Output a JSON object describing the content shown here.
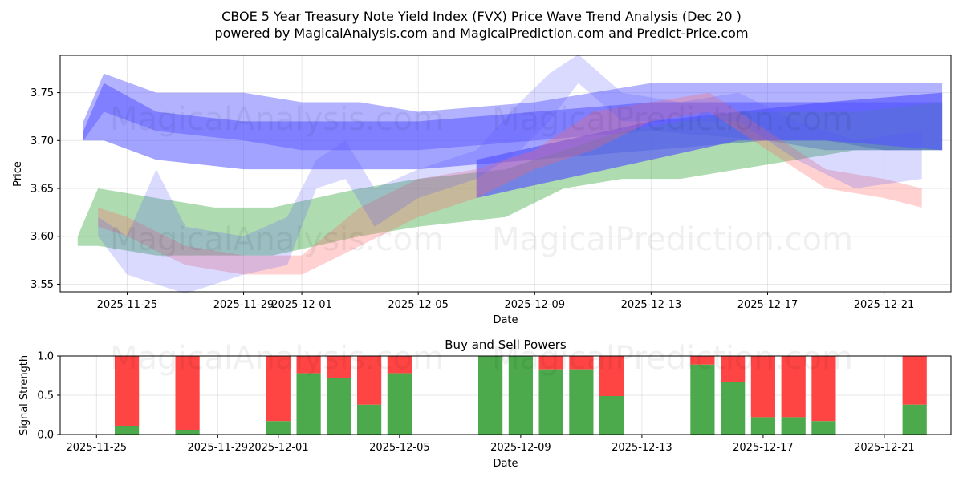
{
  "title_line1": "CBOE 5 Year Treasury Note Yield Index (FVX) Price Wave Trend Analysis (Dec 20 )",
  "title_line2": "powered by MagicalAnalysis.com and MagicalPrediction.com and Predict-Price.com",
  "watermarks": {
    "top_left": "MagicalAnalysis.com",
    "top_right": "MagicalPrediction.com",
    "mid_left": "MagicalAnalysis.com",
    "mid_right": "MagicalPrediction.com",
    "bottom_left": "MagicalAnalysis.com",
    "bottom_right": "MagicalPrediction.com"
  },
  "colors": {
    "blue": "#5555ff",
    "red": "#ff6666",
    "green": "#4caf50",
    "buy": "#4caa4c",
    "sell": "#ff4444"
  },
  "chart_data": [
    {
      "type": "area",
      "title": "",
      "xlabel": "Date",
      "ylabel": "Price",
      "x_ticks": [
        "2025-11-25",
        "2025-11-29",
        "2025-12-01",
        "2025-12-05",
        "2025-12-09",
        "2025-12-13",
        "2025-12-17",
        "2025-12-21"
      ],
      "x_tick_days": [
        2,
        6,
        8,
        12,
        16,
        20,
        24,
        28
      ],
      "xlim_days": [
        -0.3,
        30.3
      ],
      "y_ticks": [
        "3.55",
        "3.60",
        "3.65",
        "3.70",
        "3.75"
      ],
      "y_tick_values": [
        3.55,
        3.6,
        3.65,
        3.7,
        3.75
      ],
      "ylim": [
        3.542,
        3.789
      ],
      "grid": true,
      "bands": [
        {
          "color": "blue",
          "opacity": 0.45,
          "x": [
            0.5,
            1.2,
            3.0,
            6.0,
            8.0,
            10.0,
            12.0,
            16.0,
            20.0,
            24.0,
            26.0,
            28.0,
            30.0
          ],
          "lower": [
            3.7,
            3.73,
            3.71,
            3.7,
            3.69,
            3.69,
            3.69,
            3.7,
            3.71,
            3.7,
            3.69,
            3.69,
            3.69
          ],
          "upper": [
            3.72,
            3.77,
            3.75,
            3.75,
            3.74,
            3.74,
            3.73,
            3.74,
            3.76,
            3.76,
            3.76,
            3.76,
            3.76
          ]
        },
        {
          "color": "blue",
          "opacity": 0.55,
          "x": [
            0.5,
            1.2,
            3.0,
            6.0,
            8.0,
            10.0,
            12.0,
            16.0,
            20.0,
            24.0,
            26.0,
            28.0,
            30.0
          ],
          "lower": [
            3.7,
            3.7,
            3.68,
            3.67,
            3.67,
            3.67,
            3.67,
            3.68,
            3.69,
            3.7,
            3.7,
            3.69,
            3.69
          ],
          "upper": [
            3.71,
            3.76,
            3.73,
            3.72,
            3.72,
            3.72,
            3.72,
            3.73,
            3.74,
            3.74,
            3.74,
            3.74,
            3.74
          ]
        },
        {
          "color": "green",
          "opacity": 0.45,
          "x": [
            0.3,
            1.0,
            3.0,
            5.0,
            7.0,
            10.0,
            12.0,
            15.0,
            17.0,
            19.0,
            21.0,
            23.0,
            25.0,
            27.0,
            30.0
          ],
          "lower": [
            3.59,
            3.59,
            3.58,
            3.58,
            3.58,
            3.6,
            3.61,
            3.62,
            3.65,
            3.66,
            3.66,
            3.67,
            3.68,
            3.69,
            3.69
          ],
          "upper": [
            3.6,
            3.65,
            3.64,
            3.63,
            3.63,
            3.65,
            3.66,
            3.67,
            3.69,
            3.71,
            3.72,
            3.73,
            3.73,
            3.73,
            3.74
          ]
        },
        {
          "color": "blue",
          "opacity": 0.65,
          "x": [
            14.0,
            17.0,
            20.0,
            23.0,
            26.0,
            30.0
          ],
          "lower": [
            3.64,
            3.66,
            3.68,
            3.7,
            3.7,
            3.69
          ],
          "upper": [
            3.68,
            3.7,
            3.72,
            3.73,
            3.74,
            3.75
          ]
        },
        {
          "color": "red",
          "opacity": 0.3,
          "x": [
            1.0,
            2.0,
            4.0,
            6.0,
            8.0,
            10.0,
            12.0,
            14.0,
            16.0,
            18.0,
            20.0,
            22.0,
            24.0,
            26.0,
            28.0,
            29.3
          ],
          "lower": [
            3.61,
            3.6,
            3.57,
            3.56,
            3.56,
            3.59,
            3.62,
            3.64,
            3.67,
            3.69,
            3.72,
            3.73,
            3.69,
            3.65,
            3.64,
            3.63
          ],
          "upper": [
            3.63,
            3.62,
            3.59,
            3.58,
            3.58,
            3.63,
            3.66,
            3.67,
            3.69,
            3.73,
            3.74,
            3.75,
            3.71,
            3.67,
            3.66,
            3.65
          ]
        },
        {
          "color": "blue",
          "opacity": 0.22,
          "x": [
            1.0,
            2.0,
            3.0,
            4.0,
            6.0,
            7.5,
            8.5,
            9.5,
            10.5,
            12.0,
            14.0,
            15.5,
            16.5,
            17.5,
            19.0,
            21.0,
            23.0,
            25.0,
            27.0,
            29.3
          ],
          "lower": [
            3.6,
            3.56,
            3.55,
            3.54,
            3.56,
            3.57,
            3.65,
            3.66,
            3.61,
            3.64,
            3.66,
            3.69,
            3.72,
            3.76,
            3.72,
            3.72,
            3.72,
            3.68,
            3.65,
            3.66
          ],
          "upper": [
            3.62,
            3.6,
            3.67,
            3.61,
            3.6,
            3.62,
            3.68,
            3.7,
            3.65,
            3.67,
            3.69,
            3.74,
            3.77,
            3.79,
            3.75,
            3.74,
            3.75,
            3.72,
            3.7,
            3.71
          ]
        }
      ]
    },
    {
      "type": "bar",
      "title": "Buy and Sell Powers",
      "xlabel": "Date",
      "ylabel": "Signal Strength",
      "x_ticks": [
        "2025-11-25",
        "2025-11-29",
        "2025-12-01",
        "2025-12-05",
        "2025-12-09",
        "2025-12-13",
        "2025-12-17",
        "2025-12-21"
      ],
      "x_tick_days": [
        0,
        4,
        6,
        10,
        14,
        18,
        22,
        26
      ],
      "xlim_days": [
        -1.2,
        28.2
      ],
      "y_ticks": [
        "0.0",
        "0.5",
        "1.0"
      ],
      "y_tick_values": [
        0.0,
        0.5,
        1.0
      ],
      "ylim": [
        0.0,
        1.0
      ],
      "grid": true,
      "bar_width": 0.8,
      "buy_color": "buy",
      "sell_color": "sell",
      "day": [
        1,
        3,
        6,
        7,
        8,
        9,
        10,
        13,
        14,
        15,
        16,
        17,
        20,
        21,
        22,
        23,
        24,
        27
      ],
      "buy": [
        0.11,
        0.06,
        0.17,
        0.78,
        0.72,
        0.38,
        0.78,
        1.0,
        1.0,
        0.83,
        0.83,
        0.49,
        0.89,
        0.67,
        0.22,
        0.22,
        0.17,
        0.38
      ]
    }
  ]
}
